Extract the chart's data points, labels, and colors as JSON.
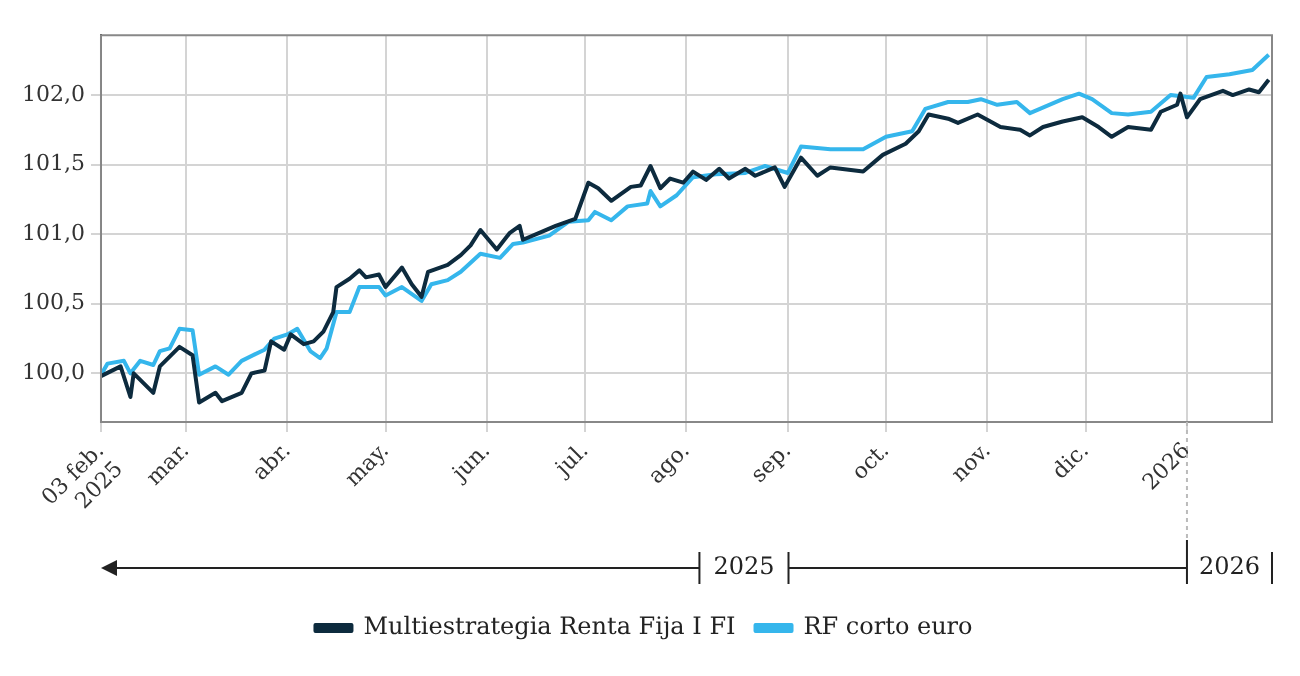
{
  "chart_data": {
    "type": "line",
    "xlim": [
      "2025-02-03",
      "2026-01-27"
    ],
    "xticks": [
      {
        "value": "2025-02-03",
        "label": "03 feb.\n2025"
      },
      {
        "value": "2025-03-01",
        "label": "mar."
      },
      {
        "value": "2025-04-01",
        "label": "abr."
      },
      {
        "value": "2025-05-01",
        "label": "may."
      },
      {
        "value": "2025-06-01",
        "label": "jun."
      },
      {
        "value": "2025-07-01",
        "label": "jul."
      },
      {
        "value": "2025-08-01",
        "label": "ago."
      },
      {
        "value": "2025-09-01",
        "label": "sep."
      },
      {
        "value": "2025-10-01",
        "label": "oct."
      },
      {
        "value": "2025-11-01",
        "label": "nov."
      },
      {
        "value": "2025-12-01",
        "label": "dic."
      },
      {
        "value": "2026-01-01",
        "label": "2026"
      }
    ],
    "ylim": [
      99.65,
      102.43
    ],
    "yticks": [
      {
        "value": 100,
        "label": "100,0"
      },
      {
        "value": 100.5,
        "label": "100,5"
      },
      {
        "value": 101,
        "label": "101,0"
      },
      {
        "value": 101.5,
        "label": "101,5"
      },
      {
        "value": 102,
        "label": "102,0"
      }
    ],
    "grid": true,
    "legend": "bottom",
    "marker": "none",
    "line_style": "solid",
    "annotations": [
      "2025",
      "2026"
    ],
    "series": [
      {
        "name": "Multiestrategia Renta Fija I FI",
        "color": "#0d2b3e",
        "x": [
          "2025-02-03",
          "2025-02-09",
          "2025-02-12",
          "2025-02-13",
          "2025-02-19",
          "2025-02-21",
          "2025-02-27",
          "2025-03-03",
          "2025-03-05",
          "2025-03-10",
          "2025-03-12",
          "2025-03-18",
          "2025-03-21",
          "2025-03-25",
          "2025-03-27",
          "2025-03-31",
          "2025-04-02",
          "2025-04-06",
          "2025-04-09",
          "2025-04-12",
          "2025-04-15",
          "2025-04-16",
          "2025-04-20",
          "2025-04-23",
          "2025-04-25",
          "2025-04-29",
          "2025-05-01",
          "2025-05-06",
          "2025-05-09",
          "2025-05-12",
          "2025-05-14",
          "2025-05-20",
          "2025-05-24",
          "2025-05-27",
          "2025-05-30",
          "2025-06-04",
          "2025-06-08",
          "2025-06-11",
          "2025-06-12",
          "2025-06-17",
          "2025-06-22",
          "2025-06-28",
          "2025-07-02",
          "2025-07-05",
          "2025-07-09",
          "2025-07-15",
          "2025-07-18",
          "2025-07-21",
          "2025-07-24",
          "2025-07-27",
          "2025-07-31",
          "2025-08-03",
          "2025-08-07",
          "2025-08-11",
          "2025-08-14",
          "2025-08-19",
          "2025-08-22",
          "2025-08-28",
          "2025-08-31",
          "2025-09-05",
          "2025-09-10",
          "2025-09-14",
          "2025-09-24",
          "2025-09-30",
          "2025-10-07",
          "2025-10-11",
          "2025-10-14",
          "2025-10-20",
          "2025-10-23",
          "2025-10-29",
          "2025-11-05",
          "2025-11-11",
          "2025-11-14",
          "2025-11-18",
          "2025-11-24",
          "2025-11-30",
          "2025-12-05",
          "2025-12-09",
          "2025-12-14",
          "2025-12-21",
          "2025-12-24",
          "2025-12-29",
          "2025-12-30",
          "2026-01-01",
          "2026-01-05",
          "2026-01-12",
          "2026-01-15",
          "2026-01-20",
          "2026-01-23",
          "2026-01-26"
        ],
        "values": [
          99.98,
          100.05,
          99.83,
          100.0,
          99.86,
          100.05,
          100.19,
          100.13,
          99.79,
          99.86,
          99.8,
          99.86,
          100.0,
          100.02,
          100.23,
          100.17,
          100.28,
          100.21,
          100.23,
          100.3,
          100.44,
          100.62,
          100.68,
          100.74,
          100.69,
          100.71,
          100.62,
          100.76,
          100.64,
          100.55,
          100.73,
          100.78,
          100.85,
          100.92,
          101.03,
          100.89,
          101.01,
          101.06,
          100.96,
          101.01,
          101.06,
          101.11,
          101.37,
          101.33,
          101.24,
          101.34,
          101.35,
          101.49,
          101.33,
          101.4,
          101.37,
          101.45,
          101.39,
          101.47,
          101.4,
          101.47,
          101.42,
          101.48,
          101.34,
          101.55,
          101.42,
          101.48,
          101.45,
          101.57,
          101.65,
          101.74,
          101.86,
          101.83,
          101.8,
          101.86,
          101.77,
          101.75,
          101.71,
          101.77,
          101.81,
          101.84,
          101.77,
          101.7,
          101.77,
          101.75,
          101.88,
          101.93,
          102.01,
          101.84,
          101.97,
          102.03,
          102.0,
          102.04,
          102.02,
          102.11
        ]
      },
      {
        "name": "RF corto euro",
        "color": "#35b6ec",
        "x": [
          "2025-02-03",
          "2025-02-05",
          "2025-02-10",
          "2025-02-12",
          "2025-02-15",
          "2025-02-19",
          "2025-02-21",
          "2025-02-24",
          "2025-02-27",
          "2025-03-03",
          "2025-03-05",
          "2025-03-10",
          "2025-03-14",
          "2025-03-18",
          "2025-03-25",
          "2025-03-28",
          "2025-04-01",
          "2025-04-04",
          "2025-04-08",
          "2025-04-11",
          "2025-04-13",
          "2025-04-16",
          "2025-04-20",
          "2025-04-23",
          "2025-04-29",
          "2025-05-01",
          "2025-05-06",
          "2025-05-12",
          "2025-05-15",
          "2025-05-20",
          "2025-05-24",
          "2025-05-30",
          "2025-06-05",
          "2025-06-09",
          "2025-06-12",
          "2025-06-20",
          "2025-06-26",
          "2025-07-02",
          "2025-07-04",
          "2025-07-09",
          "2025-07-14",
          "2025-07-20",
          "2025-07-21",
          "2025-07-24",
          "2025-07-29",
          "2025-08-03",
          "2025-08-10",
          "2025-08-19",
          "2025-08-25",
          "2025-09-01",
          "2025-09-05",
          "2025-09-14",
          "2025-09-24",
          "2025-10-01",
          "2025-10-09",
          "2025-10-13",
          "2025-10-20",
          "2025-10-26",
          "2025-10-30",
          "2025-11-04",
          "2025-11-10",
          "2025-11-14",
          "2025-11-24",
          "2025-11-29",
          "2025-12-03",
          "2025-12-09",
          "2025-12-14",
          "2025-12-21",
          "2025-12-27",
          "2026-01-03",
          "2026-01-07",
          "2026-01-14",
          "2026-01-21",
          "2026-01-26"
        ],
        "values": [
          99.99,
          100.07,
          100.09,
          100.0,
          100.09,
          100.06,
          100.16,
          100.18,
          100.32,
          100.31,
          99.99,
          100.05,
          99.99,
          100.09,
          100.17,
          100.25,
          100.28,
          100.32,
          100.16,
          100.11,
          100.18,
          100.44,
          100.44,
          100.62,
          100.62,
          100.56,
          100.62,
          100.52,
          100.64,
          100.67,
          100.73,
          100.86,
          100.83,
          100.93,
          100.94,
          100.99,
          101.09,
          101.1,
          101.16,
          101.1,
          101.2,
          101.22,
          101.31,
          101.2,
          101.28,
          101.41,
          101.43,
          101.44,
          101.49,
          101.44,
          101.63,
          101.61,
          101.61,
          101.7,
          101.74,
          101.9,
          101.95,
          101.95,
          101.97,
          101.93,
          101.95,
          101.87,
          101.97,
          102.01,
          101.97,
          101.87,
          101.86,
          101.88,
          102.0,
          101.98,
          102.13,
          102.15,
          102.18,
          102.29
        ]
      }
    ]
  }
}
